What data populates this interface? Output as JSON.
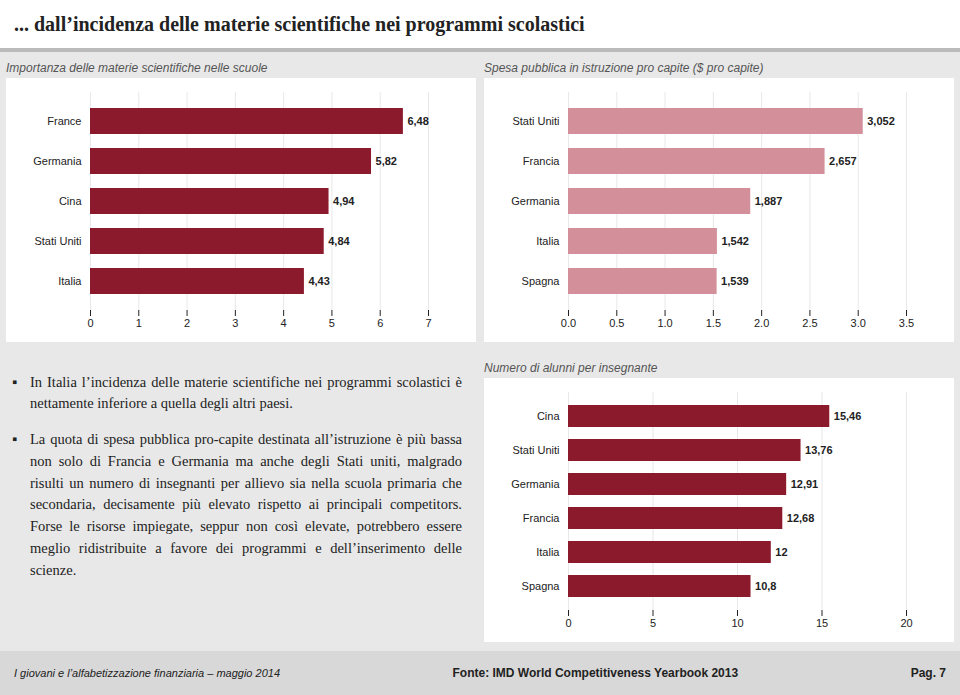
{
  "title": "... dall’incidenza delle materie scientifiche nei programmi scolastici",
  "annotations": [
    "In Italia l’incidenza delle materie scientifiche nei programmi scolastici è nettamente inferiore a quella degli altri paesi.",
    "La quota di spesa pubblica pro-capite destinata all’istruzione è più bassa non solo di Francia e Germania ma anche degli Stati uniti, malgrado risulti un numero di insegnanti per allievo sia nella scuola primaria che secondaria, decisamente più elevato rispetto ai principali competitors. Forse le risorse impiegate, seppur non così elevate, potrebbero essere meglio ridistribuite a favore dei programmi e dell’inserimento delle scienze.",
    "I giovani e l’alfabetizzazione finanziaria – maggio 2014",
    "Fonte: IMD World Competitiveness Yearbook 2013",
    "Pag. 7"
  ],
  "chart_data": [
    {
      "type": "bar",
      "orientation": "horizontal",
      "title": "Importanza delle materie scientifiche nelle scuole",
      "categories": [
        "France",
        "Germania",
        "Cina",
        "Stati Uniti",
        "Italia"
      ],
      "values": [
        6.48,
        5.82,
        4.94,
        4.84,
        4.43
      ],
      "value_labels": [
        "6,48",
        "5,82",
        "4,94",
        "4,84",
        "4,43"
      ],
      "data_labels": true,
      "color": "#8B1A2D",
      "xlim": [
        0,
        7
      ],
      "xticks": [
        0,
        1,
        2,
        3,
        4,
        5,
        6,
        7
      ],
      "grid": true
    },
    {
      "type": "bar",
      "orientation": "horizontal",
      "title": "Spesa pubblica in istruzione pro capite ($ pro capite)",
      "categories": [
        "Stati Uniti",
        "Francia",
        "Germania",
        "Italia",
        "Spagna"
      ],
      "values": [
        3.052,
        2.657,
        1.887,
        1.542,
        1.539
      ],
      "value_labels": [
        "3,052",
        "2,657",
        "1,887",
        "1,542",
        "1,539"
      ],
      "data_labels": true,
      "color": "#D4909A",
      "xlim": [
        0,
        3.5
      ],
      "xticks": [
        {
          "value": 0,
          "label": "0.0"
        },
        0.5,
        {
          "value": 1,
          "label": "1.0"
        },
        1.5,
        {
          "value": 2,
          "label": "2.0"
        },
        2.5,
        {
          "value": 3,
          "label": "3.0"
        },
        3.5
      ],
      "grid": true
    },
    {
      "type": "bar",
      "orientation": "horizontal",
      "title": "Numero di alunni per insegnante",
      "categories": [
        "Cina",
        "Stati Uniti",
        "Germania",
        "Francia",
        "Italia",
        "Spagna"
      ],
      "values": [
        15.46,
        13.76,
        12.91,
        12.68,
        12,
        10.8
      ],
      "value_labels": [
        "15,46",
        "13,76",
        "12,91",
        "12,68",
        "12",
        "10,8"
      ],
      "data_labels": true,
      "color": "#8B1A2D",
      "xlim": [
        0,
        20
      ],
      "xticks": [
        0,
        5,
        10,
        15,
        20
      ],
      "grid": true
    }
  ]
}
